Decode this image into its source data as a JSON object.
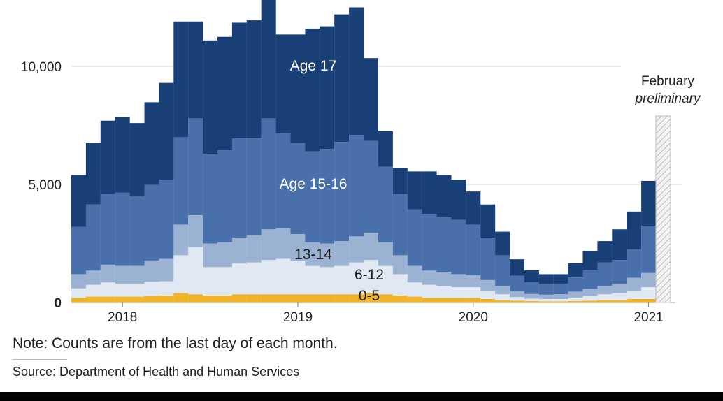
{
  "chart_data": {
    "type": "bar",
    "stacked": true,
    "categories": [
      "2017-10",
      "2017-11",
      "2017-12",
      "2018-01",
      "2018-02",
      "2018-03",
      "2018-04",
      "2018-05",
      "2018-06",
      "2018-07",
      "2018-08",
      "2018-09",
      "2018-10",
      "2018-11",
      "2018-12",
      "2019-01",
      "2019-02",
      "2019-03",
      "2019-04",
      "2019-05",
      "2019-06",
      "2019-07",
      "2019-08",
      "2019-09",
      "2019-10",
      "2019-11",
      "2019-12",
      "2020-01",
      "2020-02",
      "2020-03",
      "2020-04",
      "2020-05",
      "2020-06",
      "2020-07",
      "2020-08",
      "2020-09",
      "2020-10",
      "2020-11",
      "2020-12",
      "2021-01",
      "2021-02"
    ],
    "series": [
      {
        "name": "0-5",
        "color": "#f0b429",
        "values": [
          200,
          250,
          250,
          250,
          250,
          280,
          300,
          400,
          350,
          300,
          300,
          350,
          350,
          350,
          350,
          350,
          350,
          350,
          350,
          350,
          400,
          350,
          300,
          250,
          200,
          200,
          200,
          200,
          150,
          100,
          80,
          60,
          50,
          50,
          60,
          80,
          100,
          100,
          150,
          150,
          0
        ]
      },
      {
        "name": "6-12",
        "color": "#dfe8f3",
        "values": [
          400,
          500,
          600,
          550,
          550,
          600,
          600,
          1600,
          2000,
          1200,
          1200,
          1300,
          1350,
          1450,
          1500,
          1400,
          1200,
          1150,
          1200,
          1350,
          1400,
          1200,
          900,
          600,
          550,
          500,
          450,
          450,
          350,
          250,
          150,
          100,
          100,
          100,
          150,
          200,
          250,
          300,
          350,
          500,
          0
        ]
      },
      {
        "name": "13-14",
        "color": "#9bb2d3",
        "values": [
          600,
          600,
          750,
          750,
          750,
          900,
          950,
          1300,
          1350,
          1000,
          1050,
          1100,
          1150,
          1300,
          1300,
          1150,
          1000,
          1000,
          1050,
          1100,
          1150,
          1000,
          800,
          700,
          600,
          600,
          550,
          500,
          450,
          350,
          250,
          200,
          180,
          200,
          250,
          300,
          350,
          400,
          550,
          600,
          0
        ]
      },
      {
        "name": "15-16",
        "color": "#4a70ab",
        "values": [
          2000,
          2800,
          3000,
          3100,
          2950,
          3200,
          3350,
          3700,
          4100,
          3800,
          3900,
          4200,
          4100,
          4700,
          4000,
          3850,
          3850,
          4000,
          4200,
          4300,
          3900,
          3200,
          2600,
          2400,
          2400,
          2300,
          2300,
          2150,
          1800,
          1300,
          650,
          500,
          450,
          450,
          600,
          800,
          1000,
          1000,
          1200,
          2000,
          0
        ]
      },
      {
        "name": "Age 17",
        "color": "#183f76",
        "values": [
          2200,
          2600,
          3100,
          3200,
          3100,
          3500,
          4100,
          4900,
          4100,
          4800,
          4800,
          4900,
          5000,
          5100,
          4200,
          4600,
          5200,
          5200,
          5400,
          5400,
          3500,
          1500,
          1100,
          1600,
          1800,
          1800,
          1700,
          1400,
          1400,
          1000,
          700,
          500,
          420,
          400,
          600,
          800,
          900,
          1300,
          1600,
          1900,
          0
        ]
      },
      {
        "name": "February preliminary",
        "color": "#e6e6e6",
        "values": [
          0,
          0,
          0,
          0,
          0,
          0,
          0,
          0,
          0,
          0,
          0,
          0,
          0,
          0,
          0,
          0,
          0,
          0,
          0,
          0,
          0,
          0,
          0,
          0,
          0,
          0,
          0,
          0,
          0,
          0,
          0,
          0,
          0,
          0,
          0,
          0,
          0,
          0,
          0,
          0,
          7900
        ]
      }
    ],
    "ylim": [
      0,
      13000
    ],
    "yticks": [
      "0",
      "5,000",
      "10,000"
    ],
    "ytick_values": [
      0,
      5000,
      10000
    ],
    "xticks": [
      "2018",
      "2019",
      "2020",
      "2021"
    ],
    "xtick_categories": [
      "2018-01",
      "2019-01",
      "2020-01",
      "2021-01"
    ],
    "grid": true,
    "annotations": [
      "Age 17",
      "Age 15-16",
      "13-14",
      "6-12",
      "0-5",
      "February",
      "preliminary"
    ],
    "legend": "inline labels"
  },
  "note": "Note: Counts are from the last day of each month.",
  "source": "Source: Department of Health and Human Services",
  "labels": {
    "age17": "Age 17",
    "age1516": "Age 15-16",
    "age1314": "13-14",
    "age612": "6-12",
    "age05": "0-5",
    "feb_line1": "February",
    "feb_line2": "preliminary"
  },
  "colors": {
    "age17": "#183f76",
    "age1516": "#4a70ab",
    "age1314": "#9bb2d3",
    "age612": "#dfe8f3",
    "age05": "#f0b429",
    "grid": "#d9d9d9"
  }
}
